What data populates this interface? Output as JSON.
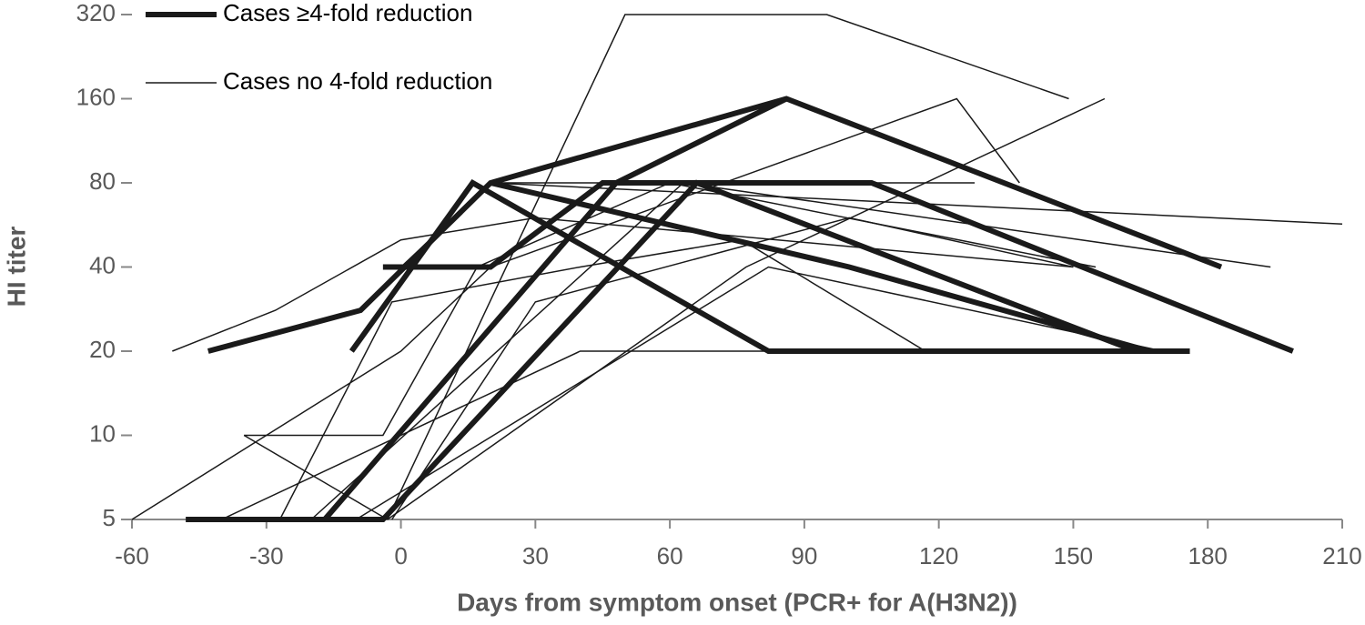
{
  "chart_data": {
    "type": "line",
    "x_label": "Days from symptom onset (PCR+ for A(H3N2))",
    "y_label": "HI titer",
    "xlim": [
      -60,
      210
    ],
    "xticks": [
      -60,
      -30,
      0,
      30,
      60,
      90,
      120,
      150,
      180,
      210
    ],
    "ylim": [
      5,
      320
    ],
    "yticks": [
      5,
      10,
      20,
      40,
      80,
      160,
      320
    ],
    "log_scale_y": true,
    "log_base": 2,
    "legend_position": "upper-left",
    "series": [
      {
        "name": "Cases ≥4-fold reduction",
        "color": "#1a1a1a",
        "width": 6,
        "lines": [
          {
            "x": [
              -43,
              -9,
              20,
              86,
              183
            ],
            "values": [
              20,
              28,
              80,
              160,
              40
            ]
          },
          {
            "x": [
              -11,
              16,
              82,
              176
            ],
            "values": [
              20,
              80,
              20,
              20
            ]
          },
          {
            "x": [
              -48,
              -4,
              66,
              164
            ],
            "values": [
              5,
              5,
              80,
              20
            ]
          },
          {
            "x": [
              -4,
              20,
              45,
              105,
              199
            ],
            "values": [
              40,
              40,
              80,
              80,
              20
            ]
          },
          {
            "x": [
              -17,
              48,
              86
            ],
            "values": [
              5,
              80,
              160
            ]
          },
          {
            "x": [
              20,
              100,
              167
            ],
            "values": [
              80,
              40,
              20
            ]
          }
        ]
      },
      {
        "name": "Cases no 4-fold reduction",
        "color": "#1a1a1a",
        "width": 1.5,
        "lines": [
          {
            "x": [
              -3,
              50,
              95,
              149
            ],
            "values": [
              5,
              320,
              320,
              160
            ]
          },
          {
            "x": [
              -51,
              -28,
              0,
              30,
              150
            ],
            "values": [
              20,
              28,
              50,
              60,
              40
            ]
          },
          {
            "x": [
              -35,
              -4,
              17,
              60,
              155
            ],
            "values": [
              10,
              10,
              40,
              80,
              40
            ]
          },
          {
            "x": [
              -60,
              0,
              20,
              124,
              138
            ],
            "values": [
              5,
              20,
              40,
              160,
              80
            ]
          },
          {
            "x": [
              -40,
              40,
              160
            ],
            "values": [
              5,
              20,
              20
            ]
          },
          {
            "x": [
              -35,
              -3
            ],
            "values": [
              10,
              5
            ]
          },
          {
            "x": [
              -27,
              -2,
              40,
              76,
              117
            ],
            "values": [
              5,
              30,
              40,
              50,
              20
            ]
          },
          {
            "x": [
              -3,
              77,
              157
            ],
            "values": [
              5,
              40,
              160
            ]
          },
          {
            "x": [
              0,
              20,
              128
            ],
            "values": [
              40,
              80,
              80
            ]
          },
          {
            "x": [
              20,
              210
            ],
            "values": [
              80,
              57
            ]
          },
          {
            "x": [
              -20,
              63,
              194
            ],
            "values": [
              5,
              80,
              40
            ]
          },
          {
            "x": [
              -10,
              82,
              170
            ],
            "values": [
              5,
              40,
              20
            ]
          },
          {
            "x": [
              -2,
              30,
              100,
              150
            ],
            "values": [
              5,
              30,
              60,
              40
            ]
          }
        ]
      }
    ]
  }
}
